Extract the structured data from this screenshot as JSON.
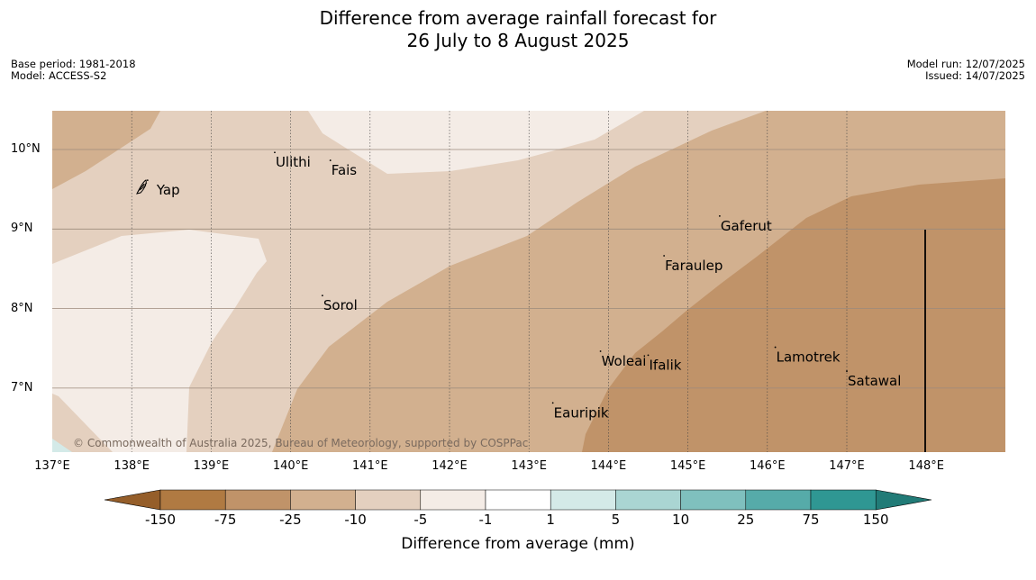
{
  "title_line1": "Difference from average rainfall forecast for",
  "title_line2": "26 July to 8 August 2025",
  "base_period": "Base period: 1981-2018",
  "model": "Model: ACCESS-S2",
  "model_run": "Model run: 12/07/2025",
  "issued": "Issued: 14/07/2025",
  "copyright": "© Commonwealth of Australia 2025, Bureau of Meteorology, supported by COSPPac",
  "lat_labels": [
    "10°N",
    "9°N",
    "8°N",
    "7°N"
  ],
  "lon_labels": [
    "137°E",
    "138°E",
    "139°E",
    "140°E",
    "141°E",
    "142°E",
    "143°E",
    "144°E",
    "145°E",
    "146°E",
    "147°E",
    "148°E"
  ],
  "places": [
    {
      "name": "Ulithi",
      "lon": 139.8,
      "lat": 9.85
    },
    {
      "name": "Fais",
      "lon": 140.5,
      "lat": 9.75
    },
    {
      "name": "Yap",
      "lon": 138.2,
      "lat": 9.5
    },
    {
      "name": "Gaferut",
      "lon": 145.4,
      "lat": 9.05
    },
    {
      "name": "Faraulep",
      "lon": 144.7,
      "lat": 8.55
    },
    {
      "name": "Sorol",
      "lon": 140.4,
      "lat": 8.05
    },
    {
      "name": "Lamotrek",
      "lon": 146.1,
      "lat": 7.4
    },
    {
      "name": "Woleai",
      "lon": 143.9,
      "lat": 7.35
    },
    {
      "name": "Ifalik",
      "lon": 144.5,
      "lat": 7.3
    },
    {
      "name": "Satawal",
      "lon": 147.0,
      "lat": 7.1
    },
    {
      "name": "Eauripik",
      "lon": 143.3,
      "lat": 6.7
    }
  ],
  "colorbar": {
    "title": "Difference from average (mm)",
    "boundaries": [
      "-150",
      "-75",
      "-25",
      "-10",
      "-5",
      "-1",
      "1",
      "5",
      "10",
      "25",
      "75",
      "150"
    ],
    "colors": [
      "#b07a42",
      "#c09369",
      "#d2b08f",
      "#e4d0bf",
      "#f4ece6",
      "#ffffff",
      "#d4eae8",
      "#aad5d3",
      "#7fc0be",
      "#56aba9",
      "#2f9793"
    ],
    "under_color": "#955e2a",
    "over_color": "#217b77"
  },
  "chart_data": {
    "type": "heatmap",
    "xlim": [
      137,
      149
    ],
    "ylim": [
      6.2,
      10.5
    ],
    "xlabel": "",
    "ylabel": "",
    "grid": true,
    "regions": [
      {
        "range": "-75 to -25",
        "color": "#c09369"
      },
      {
        "range": "-25 to -10",
        "color": "#d2b08f"
      },
      {
        "range": "-10 to -5",
        "color": "#e4d0bf"
      },
      {
        "range": "-5 to -1",
        "color": "#f4ece6"
      },
      {
        "range": "1 to 5",
        "color": "#d4eae8"
      }
    ]
  }
}
